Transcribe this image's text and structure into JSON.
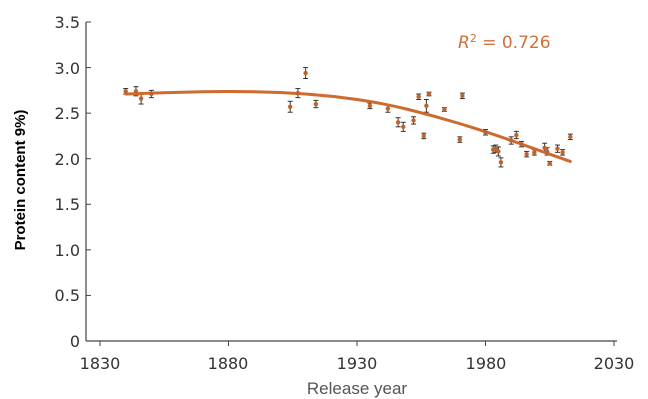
{
  "chart_data": {
    "type": "scatter",
    "title": "",
    "xlabel": "Release year",
    "ylabel": "Protein content 9%)",
    "xlim": [
      1830,
      2030
    ],
    "ylim": [
      0,
      3.5
    ],
    "x_ticks": [
      "1830",
      "1880",
      "1930",
      "1980",
      "2030"
    ],
    "y_ticks": [
      "0",
      "0.5",
      "1.0",
      "1.5",
      "2.0",
      "2.5",
      "3.0",
      "3.5"
    ],
    "annotation": {
      "prefix": "R",
      "sup": "2",
      "suffix": " = 0.726"
    },
    "grid": false,
    "colors": {
      "points": "#c0622a",
      "trend": "#cd6a2e",
      "errorbar": "#333333",
      "annotation": "#d0703a",
      "axis": "#444444"
    },
    "series": [
      {
        "values_xy": [
          [
            1840,
            2.74
          ],
          [
            1844,
            2.74
          ],
          [
            1846,
            2.66
          ],
          [
            1850,
            2.71
          ],
          [
            1904,
            2.57
          ],
          [
            1907,
            2.72
          ],
          [
            1910,
            2.94
          ],
          [
            1914,
            2.6
          ],
          [
            1935,
            2.58
          ],
          [
            1942,
            2.55
          ],
          [
            1946,
            2.4
          ],
          [
            1948,
            2.35
          ],
          [
            1952,
            2.42
          ],
          [
            1954,
            2.68
          ],
          [
            1956,
            2.25
          ],
          [
            1957,
            2.58
          ],
          [
            1958,
            2.71
          ],
          [
            1964,
            2.54
          ],
          [
            1970,
            2.21
          ],
          [
            1971,
            2.69
          ],
          [
            1980,
            2.29
          ],
          [
            1983,
            2.1
          ],
          [
            1984,
            2.11
          ],
          [
            1985,
            2.08
          ],
          [
            1986,
            1.96
          ],
          [
            1990,
            2.2
          ],
          [
            1992,
            2.26
          ],
          [
            1994,
            2.16
          ],
          [
            1996,
            2.05
          ],
          [
            1999,
            2.07
          ],
          [
            2003,
            2.12
          ],
          [
            2004,
            2.08
          ],
          [
            2005,
            1.95
          ],
          [
            2008,
            2.11
          ],
          [
            2010,
            2.07
          ],
          [
            2013,
            2.24
          ]
        ],
        "errors": [
          0.03,
          0.05,
          0.06,
          0.04,
          0.06,
          0.05,
          0.06,
          0.04,
          0.03,
          0.04,
          0.05,
          0.05,
          0.04,
          0.03,
          0.03,
          0.07,
          0.02,
          0.02,
          0.03,
          0.03,
          0.03,
          0.04,
          0.04,
          0.05,
          0.05,
          0.04,
          0.04,
          0.03,
          0.03,
          0.03,
          0.05,
          0.04,
          0.02,
          0.04,
          0.03,
          0.03
        ]
      }
    ],
    "trendline": {
      "x": [
        1840,
        1860,
        1880,
        1900,
        1920,
        1940,
        1960,
        1980,
        2000,
        2013
      ],
      "y": [
        2.71,
        2.73,
        2.74,
        2.73,
        2.69,
        2.61,
        2.47,
        2.3,
        2.1,
        1.97
      ]
    }
  }
}
